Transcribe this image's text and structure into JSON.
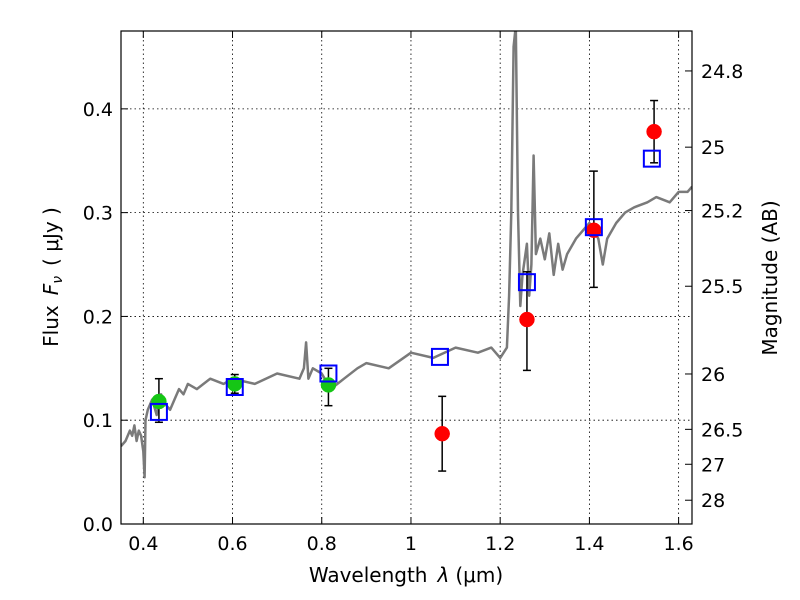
{
  "chart_data": {
    "type": "scatter",
    "xlabel_text": "Wavelength",
    "xlabel_symbol": "λ",
    "xlabel_unit": "(μm)",
    "ylabel_text": "Flux",
    "ylabel_symbol": "F",
    "ylabel_subscript": "ν",
    "ylabel_unit": "( μJy )",
    "y2label": "Magnitude (AB)",
    "xlim": [
      0.35,
      1.63
    ],
    "ylim": [
      0.0,
      0.475
    ],
    "grid": true,
    "x_ticks": [
      {
        "value": 0.4,
        "label": "0.4"
      },
      {
        "value": 0.6,
        "label": "0.6"
      },
      {
        "value": 0.8,
        "label": "0.8"
      },
      {
        "value": 1.0,
        "label": "1"
      },
      {
        "value": 1.2,
        "label": "1.2"
      },
      {
        "value": 1.4,
        "label": "1.4"
      },
      {
        "value": 1.6,
        "label": "1.6"
      }
    ],
    "y_ticks": [
      {
        "value": 0.0,
        "label": "0.0"
      },
      {
        "value": 0.1,
        "label": "0.1"
      },
      {
        "value": 0.2,
        "label": "0.2"
      },
      {
        "value": 0.3,
        "label": "0.3"
      },
      {
        "value": 0.4,
        "label": "0.4"
      }
    ],
    "y2_ticks": [
      {
        "label": "24.8",
        "mag": 24.8
      },
      {
        "label": "25",
        "mag": 25.0
      },
      {
        "label": "25.2",
        "mag": 25.2
      },
      {
        "label": "25.5",
        "mag": 25.5
      },
      {
        "label": "26",
        "mag": 26.0
      },
      {
        "label": "26.5",
        "mag": 26.5
      },
      {
        "label": "27",
        "mag": 27.0
      },
      {
        "label": "28",
        "mag": 28.0
      }
    ],
    "series": [
      {
        "style": "line",
        "color": "#7a7a7a",
        "x": [
          0.35,
          0.36,
          0.37,
          0.375,
          0.38,
          0.385,
          0.39,
          0.395,
          0.4,
          0.403,
          0.405,
          0.41,
          0.42,
          0.43,
          0.44,
          0.45,
          0.46,
          0.47,
          0.48,
          0.49,
          0.5,
          0.52,
          0.55,
          0.58,
          0.6,
          0.65,
          0.7,
          0.75,
          0.76,
          0.765,
          0.77,
          0.78,
          0.8,
          0.82,
          0.85,
          0.88,
          0.9,
          0.95,
          1.0,
          1.05,
          1.1,
          1.15,
          1.18,
          1.2,
          1.215,
          1.22,
          1.225,
          1.23,
          1.235,
          1.24,
          1.245,
          1.25,
          1.26,
          1.265,
          1.27,
          1.275,
          1.28,
          1.29,
          1.3,
          1.31,
          1.32,
          1.33,
          1.34,
          1.35,
          1.37,
          1.4,
          1.42,
          1.43,
          1.44,
          1.46,
          1.48,
          1.5,
          1.53,
          1.55,
          1.58,
          1.6,
          1.62,
          1.63
        ],
        "y": [
          0.075,
          0.08,
          0.09,
          0.085,
          0.095,
          0.08,
          0.09,
          0.085,
          0.07,
          0.045,
          0.1,
          0.11,
          0.12,
          0.105,
          0.125,
          0.115,
          0.11,
          0.12,
          0.13,
          0.125,
          0.135,
          0.13,
          0.14,
          0.135,
          0.14,
          0.135,
          0.145,
          0.14,
          0.15,
          0.175,
          0.14,
          0.15,
          0.145,
          0.13,
          0.14,
          0.15,
          0.155,
          0.15,
          0.165,
          0.16,
          0.17,
          0.165,
          0.17,
          0.16,
          0.17,
          0.22,
          0.3,
          0.46,
          0.48,
          0.3,
          0.21,
          0.24,
          0.27,
          0.22,
          0.25,
          0.355,
          0.26,
          0.275,
          0.255,
          0.28,
          0.24,
          0.27,
          0.245,
          0.26,
          0.275,
          0.29,
          0.275,
          0.25,
          0.275,
          0.29,
          0.3,
          0.305,
          0.31,
          0.315,
          0.31,
          0.32,
          0.32,
          0.325
        ]
      },
      {
        "style": "points",
        "marker": "circle",
        "color": "#15c615",
        "x": [
          0.435,
          0.605,
          0.815
        ],
        "y": [
          0.118,
          0.135,
          0.134
        ],
        "yerr_lo": [
          0.02,
          0.009,
          0.02
        ],
        "yerr_hi": [
          0.022,
          0.009,
          0.016
        ]
      },
      {
        "style": "points",
        "marker": "circle",
        "color": "#ff0000",
        "x": [
          1.07,
          1.26,
          1.41,
          1.545
        ],
        "y": [
          0.087,
          0.197,
          0.283,
          0.378
        ],
        "yerr_lo": [
          0.036,
          0.049,
          0.055,
          0.03
        ],
        "yerr_hi": [
          0.036,
          0.046,
          0.057,
          0.03
        ]
      },
      {
        "style": "points",
        "marker": "square",
        "color": "#0000ff",
        "x": [
          0.435,
          0.605,
          0.815,
          1.065,
          1.26,
          1.41,
          1.54
        ],
        "y": [
          0.108,
          0.132,
          0.145,
          0.161,
          0.233,
          0.286,
          0.352
        ]
      }
    ]
  }
}
